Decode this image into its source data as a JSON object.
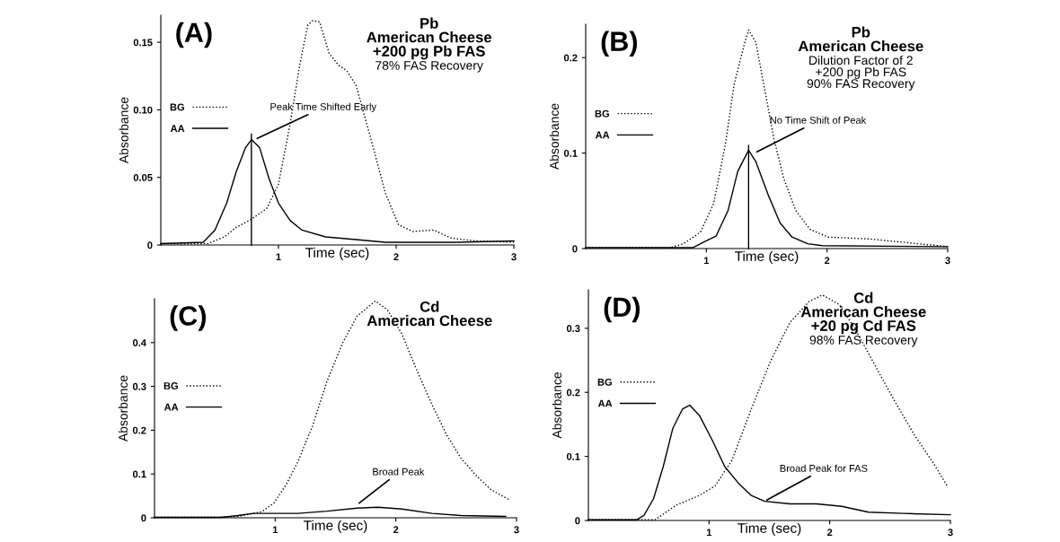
{
  "chart_data": [
    {
      "type": "line",
      "title": "Pb\nAmerican Cheese\n+200 pg Pb FAS",
      "subtitle": "78% FAS Recovery",
      "xlabel": "Time (sec)",
      "ylabel": "Absorbance",
      "xlim": [
        0,
        3
      ],
      "ylim": [
        0,
        0.17
      ],
      "xticks": [
        1,
        2,
        3
      ],
      "yticks": [
        0,
        {
          "value": 0.05,
          "label": "0.05"
        },
        {
          "value": 0.1,
          "label": "0.10"
        },
        {
          "value": 0.15,
          "label": "0.15"
        }
      ],
      "legend": "left",
      "grid": false,
      "marker": "none",
      "annotations": [
        "(A)",
        {
          "text": "Peak Time Shifted Early",
          "x": 0.8,
          "y": 0.078
        }
      ],
      "series": [
        {
          "name": "BG",
          "color": "#000000",
          "line_style": "dotted",
          "x": [
            0,
            0.4,
            0.54,
            0.64,
            0.77,
            0.9,
            1.0,
            1.1,
            1.18,
            1.25,
            1.29,
            1.35,
            1.43,
            1.51,
            1.58,
            1.66,
            1.79,
            1.91,
            2.02,
            2.14,
            2.32,
            2.47,
            2.68,
            3.0
          ],
          "values": [
            0.001,
            0.001,
            0.006,
            0.013,
            0.019,
            0.027,
            0.045,
            0.09,
            0.133,
            0.163,
            0.166,
            0.165,
            0.142,
            0.133,
            0.129,
            0.118,
            0.077,
            0.038,
            0.015,
            0.01,
            0.011,
            0.005,
            0.003,
            0.002
          ]
        },
        {
          "name": "AA",
          "color": "#000000",
          "line_style": "solid",
          "x": [
            0,
            0.36,
            0.46,
            0.56,
            0.64,
            0.72,
            0.77,
            0.84,
            0.92,
            1.0,
            1.1,
            1.2,
            1.4,
            1.66,
            1.91,
            2.5,
            3.0
          ],
          "values": [
            0.001,
            0.002,
            0.011,
            0.031,
            0.054,
            0.072,
            0.078,
            0.072,
            0.049,
            0.031,
            0.018,
            0.011,
            0.006,
            0.004,
            0.002,
            0.002,
            0.003
          ]
        },
        {
          "color": "#000000",
          "line_style": "solid",
          "x": [
            0.77,
            0.77
          ],
          "values": [
            0,
            0.082
          ]
        }
      ]
    },
    {
      "type": "line",
      "title": "Pb\nAmerican Cheese",
      "subtitle": "Dilution Factor of 2\n+200 pg Pb FAS\n90% FAS Recovery",
      "xlabel": "Time (sec)",
      "ylabel": "Absorbance",
      "xlim": [
        0,
        3
      ],
      "ylim": [
        0,
        0.235
      ],
      "xticks": [
        1,
        2,
        3
      ],
      "yticks": [
        0,
        0.1,
        0.2
      ],
      "legend": "left",
      "grid": false,
      "marker": "none",
      "annotations": [
        "(B)",
        {
          "text": "No Time Shift of Peak",
          "x": 1.4,
          "y": 0.1
        }
      ],
      "series": [
        {
          "name": "BG",
          "color": "#000000",
          "line_style": "dotted",
          "x": [
            0,
            0.7,
            0.81,
            0.95,
            1.06,
            1.16,
            1.23,
            1.31,
            1.35,
            1.41,
            1.48,
            1.56,
            1.64,
            1.74,
            1.86,
            2.01,
            2.36,
            2.76,
            3.0
          ],
          "values": [
            0.001,
            0.001,
            0.005,
            0.017,
            0.047,
            0.111,
            0.172,
            0.212,
            0.229,
            0.216,
            0.169,
            0.115,
            0.074,
            0.04,
            0.02,
            0.012,
            0.01,
            0.005,
            0.002
          ]
        },
        {
          "name": "AA",
          "color": "#000000",
          "line_style": "solid",
          "x": [
            0,
            0.89,
            0.98,
            1.08,
            1.18,
            1.26,
            1.35,
            1.41,
            1.51,
            1.61,
            1.71,
            1.84,
            1.96,
            3.0
          ],
          "values": [
            0.001,
            0.001,
            0.007,
            0.013,
            0.04,
            0.081,
            0.103,
            0.091,
            0.057,
            0.027,
            0.012,
            0.005,
            0.003,
            0.002
          ]
        },
        {
          "color": "#000000",
          "line_style": "solid",
          "x": [
            1.35,
            1.35
          ],
          "values": [
            0,
            0.108
          ]
        }
      ]
    },
    {
      "type": "line",
      "title": "Cd\nAmerican Cheese",
      "xlabel": "Time (sec)",
      "ylabel": "Absorbance",
      "xlim": [
        0,
        3
      ],
      "ylim": [
        0,
        0.5
      ],
      "xticks": [
        1,
        2,
        3
      ],
      "yticks": [
        0,
        0.1,
        0.2,
        0.3,
        0.4
      ],
      "legend": "left",
      "grid": false,
      "marker": "none",
      "annotations": [
        "(C)",
        {
          "text": "Broad Peak",
          "x": 1.68,
          "y": 0.03
        }
      ],
      "series": [
        {
          "name": "BG",
          "color": "#000000",
          "line_style": "dotted",
          "x": [
            0,
            0.5,
            0.69,
            0.89,
            0.99,
            1.09,
            1.19,
            1.31,
            1.43,
            1.56,
            1.68,
            1.83,
            1.93,
            2.05,
            2.17,
            2.3,
            2.42,
            2.54,
            2.67,
            2.79,
            2.94
          ],
          "values": [
            0.001,
            0.001,
            0.003,
            0.014,
            0.034,
            0.075,
            0.129,
            0.21,
            0.312,
            0.4,
            0.461,
            0.495,
            0.475,
            0.42,
            0.339,
            0.258,
            0.19,
            0.136,
            0.095,
            0.064,
            0.041
          ]
        },
        {
          "name": "AA",
          "color": "#000000",
          "line_style": "solid",
          "x": [
            0,
            0.55,
            0.69,
            0.82,
            0.99,
            1.19,
            1.43,
            1.68,
            1.85,
            2.05,
            2.3,
            2.54,
            2.91
          ],
          "values": [
            0.001,
            0.001,
            0.005,
            0.01,
            0.01,
            0.01,
            0.015,
            0.022,
            0.024,
            0.02,
            0.01,
            0.005,
            0.003
          ]
        }
      ]
    },
    {
      "type": "line",
      "title": "Cd\nAmerican Cheese\n+20 pg Cd FAS",
      "subtitle": "98% FAS Recovery",
      "xlabel": "Time (sec)",
      "ylabel": "Absorbance",
      "xlim": [
        0,
        3
      ],
      "ylim": [
        0,
        0.36
      ],
      "xticks": [
        1,
        2,
        3
      ],
      "yticks": [
        0,
        0.1,
        0.2,
        0.3
      ],
      "legend": "left",
      "grid": false,
      "marker": "none",
      "annotations": [
        "(D)",
        {
          "text": "Broad Peak for FAS",
          "x": 1.46,
          "y": 0.03
        }
      ],
      "series": [
        {
          "name": "BG",
          "color": "#000000",
          "line_style": "dotted",
          "x": [
            0,
            0.55,
            0.59,
            0.73,
            0.92,
            1.05,
            1.19,
            1.35,
            1.51,
            1.67,
            1.83,
            1.94,
            2.08,
            2.21,
            2.37,
            2.53,
            2.7,
            2.86,
            2.98
          ],
          "values": [
            0.001,
            0.001,
            0.006,
            0.024,
            0.039,
            0.054,
            0.094,
            0.174,
            0.249,
            0.309,
            0.342,
            0.352,
            0.337,
            0.299,
            0.244,
            0.189,
            0.134,
            0.089,
            0.052
          ]
        },
        {
          "name": "AA",
          "color": "#000000",
          "line_style": "solid",
          "x": [
            0,
            0.4,
            0.46,
            0.54,
            0.62,
            0.7,
            0.78,
            0.84,
            0.92,
            1.03,
            1.13,
            1.24,
            1.35,
            1.46,
            1.67,
            1.89,
            2.1,
            2.32,
            2.61,
            3.0
          ],
          "values": [
            0.001,
            0.001,
            0.008,
            0.034,
            0.084,
            0.144,
            0.174,
            0.18,
            0.164,
            0.124,
            0.084,
            0.059,
            0.039,
            0.03,
            0.026,
            0.026,
            0.022,
            0.013,
            0.011,
            0.009
          ]
        }
      ]
    }
  ]
}
